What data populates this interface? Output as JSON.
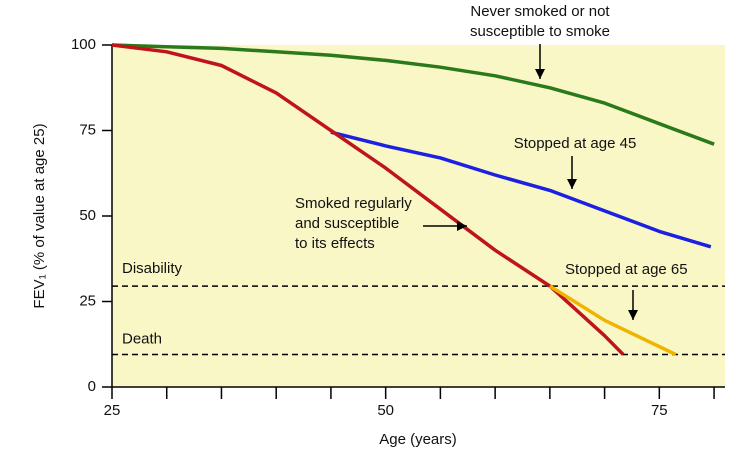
{
  "chart_data": {
    "type": "line",
    "xlabel": "Age (years)",
    "ylabel": "FEV₁ (% of value at age 25)",
    "xlim": [
      25,
      81
    ],
    "ylim": [
      0,
      100
    ],
    "xticks": [
      25,
      50,
      75
    ],
    "xminor_ticks": [
      30,
      35,
      40,
      45,
      55,
      60,
      65,
      70,
      80
    ],
    "yticks": [
      0,
      25,
      50,
      75,
      100
    ],
    "background": "#f9f7c6",
    "series": [
      {
        "label": [
          "Never smoked or not",
          "susceptible to smoke"
        ],
        "color": "#2b7a1a",
        "x": [
          25,
          30,
          35,
          40,
          45,
          50,
          55,
          60,
          65,
          70,
          75,
          80
        ],
        "values": [
          100,
          99.5,
          99,
          98,
          97,
          95.5,
          93.5,
          91,
          87.5,
          83,
          77,
          71
        ]
      },
      {
        "label": [
          "Stopped at age 45"
        ],
        "color": "#1c20e0",
        "x": [
          45,
          50,
          55,
          60,
          65,
          70,
          75,
          79.7
        ],
        "values": [
          74.5,
          70.5,
          67,
          62,
          57.5,
          51.5,
          45.5,
          41
        ]
      },
      {
        "label": [
          "Smoked regularly",
          "and susceptible",
          "to its effects"
        ],
        "color": "#c0141c",
        "x": [
          25,
          30,
          35,
          40,
          45,
          50,
          55,
          60,
          65,
          70,
          71.7
        ],
        "values": [
          100,
          98,
          94,
          86,
          75,
          64,
          52,
          40,
          29.5,
          15,
          9.5
        ]
      },
      {
        "label": [
          "Stopped at age 65"
        ],
        "color": "#f0b400",
        "x": [
          65,
          70,
          76.5
        ],
        "values": [
          29.5,
          19.5,
          9.5
        ]
      }
    ],
    "reference_lines": [
      {
        "label": "Disability",
        "value": 29.5
      },
      {
        "label": "Death",
        "value": 9.5
      }
    ]
  }
}
